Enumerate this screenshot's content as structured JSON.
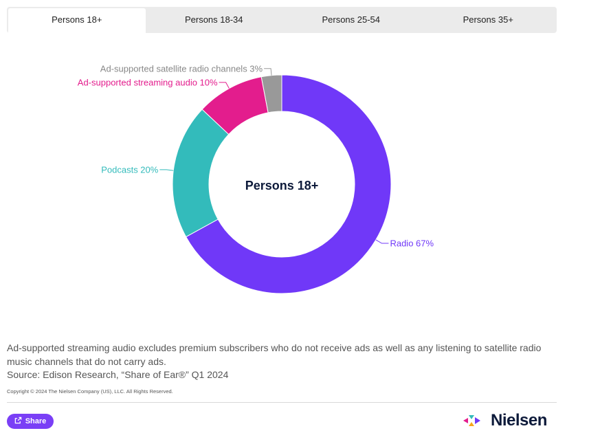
{
  "tabs": [
    {
      "label": "Persons 18+",
      "active": true
    },
    {
      "label": "Persons 18-34",
      "active": false
    },
    {
      "label": "Persons 25-54",
      "active": false
    },
    {
      "label": "Persons 35+",
      "active": false
    }
  ],
  "chart_data": {
    "type": "pie",
    "center_label": "Persons 18+",
    "slices": [
      {
        "label": "Radio 67%",
        "value": 67,
        "color": "#7038f8"
      },
      {
        "label": "Podcasts 20%",
        "value": 20,
        "color": "#33bbbb"
      },
      {
        "label": "Ad-supported streaming audio 10%",
        "value": 10,
        "color": "#e31d8d"
      },
      {
        "label": "Ad-supported satellite radio channels 3%",
        "value": 3,
        "color": "#999999"
      }
    ]
  },
  "notes": {
    "line1": "Ad-supported streaming audio excludes premium subscribers who do not receive ads as well as any listening to satellite radio music channels that do not carry ads.",
    "source": "Source: Edison Research, “Share of Ear®” Q1 2024"
  },
  "copyright": "Copyright © 2024 The Nielsen Company (US), LLC. All Rights Reserved.",
  "share_label": "Share",
  "logo_text": "Nielsen",
  "colors": {
    "accent": "#7a3ff6",
    "logo_text": "#0d1a3a"
  }
}
